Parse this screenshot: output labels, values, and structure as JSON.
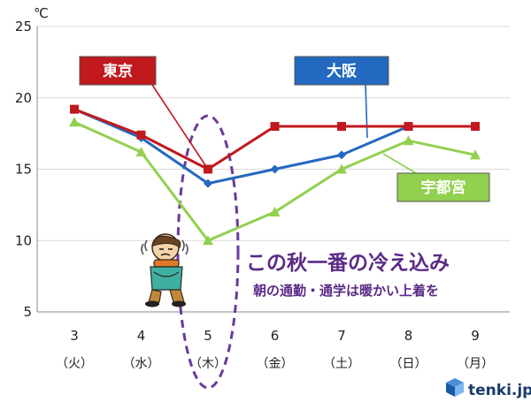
{
  "chart_data": {
    "type": "line",
    "unit": "℃",
    "ylim": [
      5,
      25
    ],
    "yticks": [
      5,
      10,
      15,
      20,
      25
    ],
    "categories": [
      "3",
      "4",
      "5",
      "6",
      "7",
      "8",
      "9"
    ],
    "weekdays": [
      "（火）",
      "（水）",
      "（木）",
      "（金）",
      "（土）",
      "（日）",
      "（月）"
    ],
    "grid": true,
    "series": [
      {
        "name": "東京",
        "color": "#c0191e",
        "marker": "square",
        "values": [
          19.2,
          17.4,
          15,
          18,
          18,
          18,
          18
        ]
      },
      {
        "name": "大阪",
        "color": "#2369c0",
        "marker": "diamond",
        "values": [
          19.2,
          17.2,
          14,
          15,
          16,
          18,
          null
        ]
      },
      {
        "name": "宇都宮",
        "color": "#92d050",
        "marker": "triangle",
        "values": [
          18.3,
          16.2,
          10,
          12,
          15,
          17,
          16
        ]
      }
    ],
    "highlight_category": "5",
    "annotations": {
      "headline": "この秋一番の冷え込み",
      "subline": "朝の通勤・通学は暖かい上着を"
    }
  },
  "colors": {
    "highlight_ellipse": "#6a3a9a",
    "headline": "#5b2a86"
  },
  "branding": {
    "logo_text": "tenki.jp",
    "logo_icon": "tenki-cube-icon"
  },
  "illustration": {
    "icon": "shivering-person-icon"
  }
}
